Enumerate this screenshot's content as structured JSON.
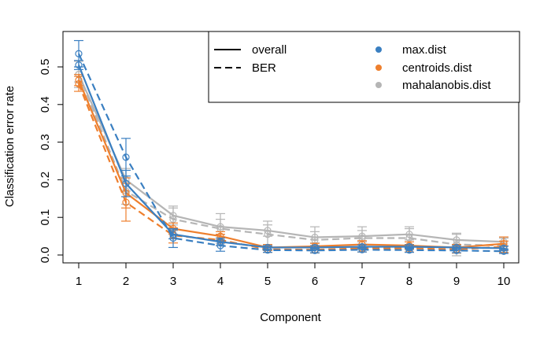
{
  "chart_data": {
    "type": "line",
    "xlabel": "Component",
    "ylabel": "Classification error rate",
    "xlim": [
      1,
      10
    ],
    "ylim": [
      0,
      0.55
    ],
    "x": [
      1,
      2,
      3,
      4,
      5,
      6,
      7,
      8,
      9,
      10
    ],
    "x_ticks": [
      "1",
      "2",
      "3",
      "4",
      "5",
      "6",
      "7",
      "8",
      "9",
      "10"
    ],
    "y_ticks": [
      "0.0",
      "0.1",
      "0.2",
      "0.3",
      "0.4",
      "0.5"
    ],
    "y_tick_values": [
      0,
      0.1,
      0.2,
      0.3,
      0.4,
      0.5
    ],
    "colors": {
      "max.dist": "#3a7fc1",
      "centroids.dist": "#ee7f2d",
      "mahalanobis.dist": "#b5b5b5"
    },
    "series": [
      {
        "name": "max.dist",
        "measure": "overall",
        "values": [
          0.505,
          0.19,
          0.055,
          0.035,
          0.02,
          0.02,
          0.022,
          0.022,
          0.02,
          0.018
        ],
        "sd": [
          0.012,
          0.035,
          0.012,
          0.01,
          0.005,
          0.005,
          0.005,
          0.005,
          0.005,
          0.005
        ]
      },
      {
        "name": "max.dist",
        "measure": "BER",
        "values": [
          0.535,
          0.26,
          0.045,
          0.025,
          0.013,
          0.012,
          0.014,
          0.013,
          0.012,
          0.01
        ],
        "sd": [
          0.035,
          0.05,
          0.025,
          0.015,
          0.006,
          0.006,
          0.006,
          0.006,
          0.006,
          0.006
        ]
      },
      {
        "name": "centroids.dist",
        "measure": "overall",
        "values": [
          0.465,
          0.165,
          0.07,
          0.05,
          0.02,
          0.023,
          0.028,
          0.025,
          0.02,
          0.03
        ],
        "sd": [
          0.015,
          0.04,
          0.015,
          0.012,
          0.008,
          0.008,
          0.01,
          0.01,
          0.008,
          0.018
        ]
      },
      {
        "name": "centroids.dist",
        "measure": "BER",
        "values": [
          0.455,
          0.14,
          0.052,
          0.04,
          0.015,
          0.014,
          0.018,
          0.018,
          0.015,
          0.022
        ],
        "sd": [
          0.02,
          0.05,
          0.02,
          0.015,
          0.008,
          0.008,
          0.01,
          0.01,
          0.01,
          0.015
        ]
      },
      {
        "name": "mahalanobis.dist",
        "measure": "overall",
        "values": [
          0.48,
          0.2,
          0.105,
          0.075,
          0.065,
          0.047,
          0.05,
          0.055,
          0.04,
          0.035
        ],
        "sd": [
          0.02,
          0.03,
          0.025,
          0.02,
          0.015,
          0.015,
          0.015,
          0.015,
          0.015,
          0.01
        ]
      },
      {
        "name": "mahalanobis.dist",
        "measure": "BER",
        "values": [
          0.48,
          0.17,
          0.095,
          0.07,
          0.055,
          0.04,
          0.045,
          0.045,
          0.028,
          0.025
        ],
        "sd": [
          0.035,
          0.035,
          0.03,
          0.04,
          0.035,
          0.035,
          0.03,
          0.03,
          0.03,
          0.02
        ]
      }
    ],
    "legend": {
      "position": "top-right",
      "line_types": [
        {
          "label": "overall",
          "style": "solid"
        },
        {
          "label": "BER",
          "style": "dashed"
        }
      ],
      "distances": [
        {
          "label": "max.dist"
        },
        {
          "label": "centroids.dist"
        },
        {
          "label": "mahalanobis.dist"
        }
      ]
    }
  }
}
